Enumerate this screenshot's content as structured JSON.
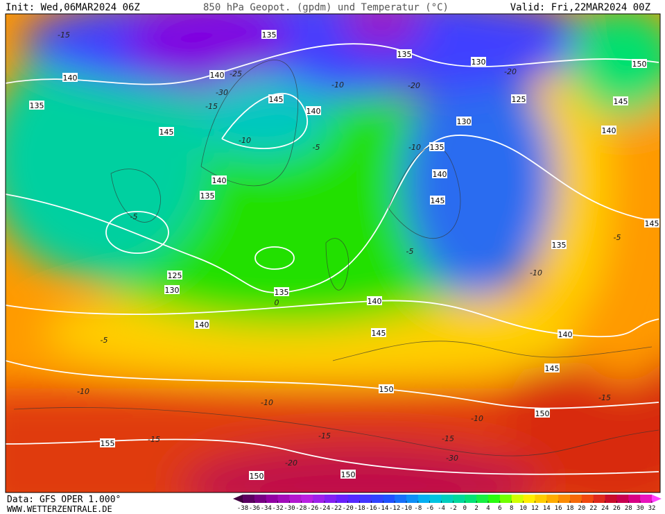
{
  "header": {
    "init": "Init: Wed,06MAR2024 06Z",
    "title": "850 hPa Geopot. (gpdm) und Temperatur (°C)",
    "valid": "Valid: Fri,22MAR2024 00Z"
  },
  "footer": {
    "data": "Data: GFS OPER 1.000°",
    "site": "WWW.WETTERZENTRALE.DE"
  },
  "colorbar": {
    "ticks": [
      -38,
      -36,
      -34,
      -32,
      -30,
      -28,
      -26,
      -24,
      -22,
      -20,
      -18,
      -16,
      -14,
      -12,
      -10,
      -8,
      -6,
      -4,
      -2,
      0,
      2,
      4,
      6,
      8,
      10,
      12,
      14,
      16,
      18,
      20,
      22,
      24,
      26,
      28,
      30,
      32
    ]
  },
  "geopotential_labels": [
    135,
    140,
    135,
    130,
    150,
    140,
    135,
    145,
    140,
    125,
    145,
    145,
    130,
    140,
    135,
    140,
    140,
    135,
    145,
    145,
    135,
    125,
    130,
    135,
    140,
    140,
    145,
    140,
    145,
    150,
    150,
    155,
    150,
    150
  ],
  "temperature_labels": [
    -15,
    -15,
    -10,
    -20,
    -20,
    -25,
    -30,
    -10,
    -5,
    -10,
    -5,
    -5,
    -10,
    -5,
    0,
    -5,
    -10,
    -10,
    -10,
    -15,
    -15,
    -15,
    -15,
    -20,
    -30
  ]
}
